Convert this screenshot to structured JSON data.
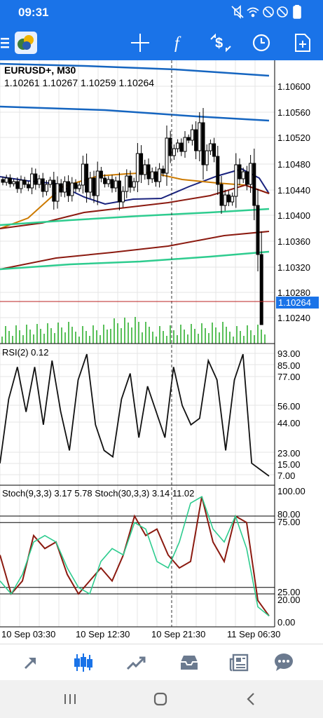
{
  "status": {
    "time": "09:31",
    "icons": [
      "mute-icon",
      "wifi-icon",
      "do-not-disturb-icon",
      "blocked-icon",
      "battery-icon"
    ]
  },
  "toolbar": {
    "icons": [
      "menu-icon",
      "app-logo",
      "crosshair-icon",
      "function-icon",
      "trade-icon",
      "clock-icon",
      "new-document-icon"
    ]
  },
  "chart": {
    "symbol": "EURUSD+, M30",
    "ohlc": "1.10261 1.10267 1.10259 1.10264",
    "price_labels": [
      "1.10600",
      "1.10560",
      "1.10520",
      "1.10480",
      "1.10440",
      "1.10400",
      "1.10360",
      "1.10320",
      "1.10280",
      "1.10240"
    ],
    "current_price": "1.10264",
    "rsi_label": "RSI(2) 0.12",
    "rsi_levels": [
      "93.00",
      "85.00",
      "77.00",
      "56.00",
      "44.00",
      "23.00",
      "15.00",
      "7.00"
    ],
    "stoch_label": "Stoch(9,3,3) 3.17 5.78 Stoch(30,3,3) 3.14 11.02",
    "stoch_levels": [
      "100.00",
      "80.00",
      "75.00",
      "25.00",
      "20.00",
      "0.00"
    ],
    "time_labels": [
      "10 Sep 03:30",
      "10 Sep 12:30",
      "10 Sep 21:30",
      "11 Sep 06:30"
    ],
    "colors": {
      "accent": "#1a73e8",
      "candle": "#000000",
      "ma_blue": "#1565c0",
      "ma_navy": "#1a237e",
      "ma_orange": "#cc7a00",
      "ma_red": "#8b1a10",
      "ma_green": "#2ecc8f",
      "volume": "#22aa22",
      "price_tag": "#1a73e8"
    }
  },
  "chart_data": [
    {
      "type": "candlestick",
      "title": "EURUSD+, M30",
      "ylim": [
        1.1022,
        1.1063
      ],
      "current_price": 1.10264,
      "x_ticks": [
        "10 Sep 03:30",
        "10 Sep 12:30",
        "10 Sep 21:30",
        "11 Sep 06:30"
      ],
      "y_ticks": [
        1.106,
        1.1056,
        1.1052,
        1.1048,
        1.1044,
        1.104,
        1.1036,
        1.1032,
        1.1028,
        1.1024
      ]
    },
    {
      "type": "line",
      "title": "RSI(2) 0.12",
      "ylim": [
        0,
        100
      ],
      "y_ticks": [
        93,
        85,
        77,
        56,
        44,
        23,
        15,
        7
      ],
      "series": [
        {
          "name": "RSI(2)",
          "values": [
            10,
            60,
            85,
            50,
            85,
            40,
            90,
            50,
            20,
            75,
            95,
            40,
            20,
            15,
            60,
            80,
            30,
            70,
            50,
            30,
            85,
            55,
            40,
            45,
            90,
            75,
            20,
            75,
            95,
            10,
            5,
            0
          ]
        }
      ]
    },
    {
      "type": "line",
      "title": "Stoch(9,3,3) 3.17 5.78 Stoch(30,3,3) 3.14 11.02",
      "ylim": [
        0,
        100
      ],
      "y_ticks": [
        100,
        80,
        75,
        25,
        20,
        0
      ],
      "series": [
        {
          "name": "Stoch(9,3,3)",
          "values": [
            50,
            20,
            30,
            65,
            55,
            60,
            35,
            20,
            30,
            40,
            30,
            50,
            80,
            65,
            70,
            50,
            40,
            45,
            95,
            60,
            45,
            80,
            75,
            15,
            3
          ]
        },
        {
          "name": "Stoch(30,3,3)",
          "values": [
            30,
            20,
            35,
            60,
            65,
            60,
            40,
            25,
            20,
            45,
            55,
            50,
            75,
            70,
            45,
            40,
            60,
            90,
            95,
            70,
            60,
            80,
            55,
            10,
            3
          ]
        }
      ]
    }
  ]
}
